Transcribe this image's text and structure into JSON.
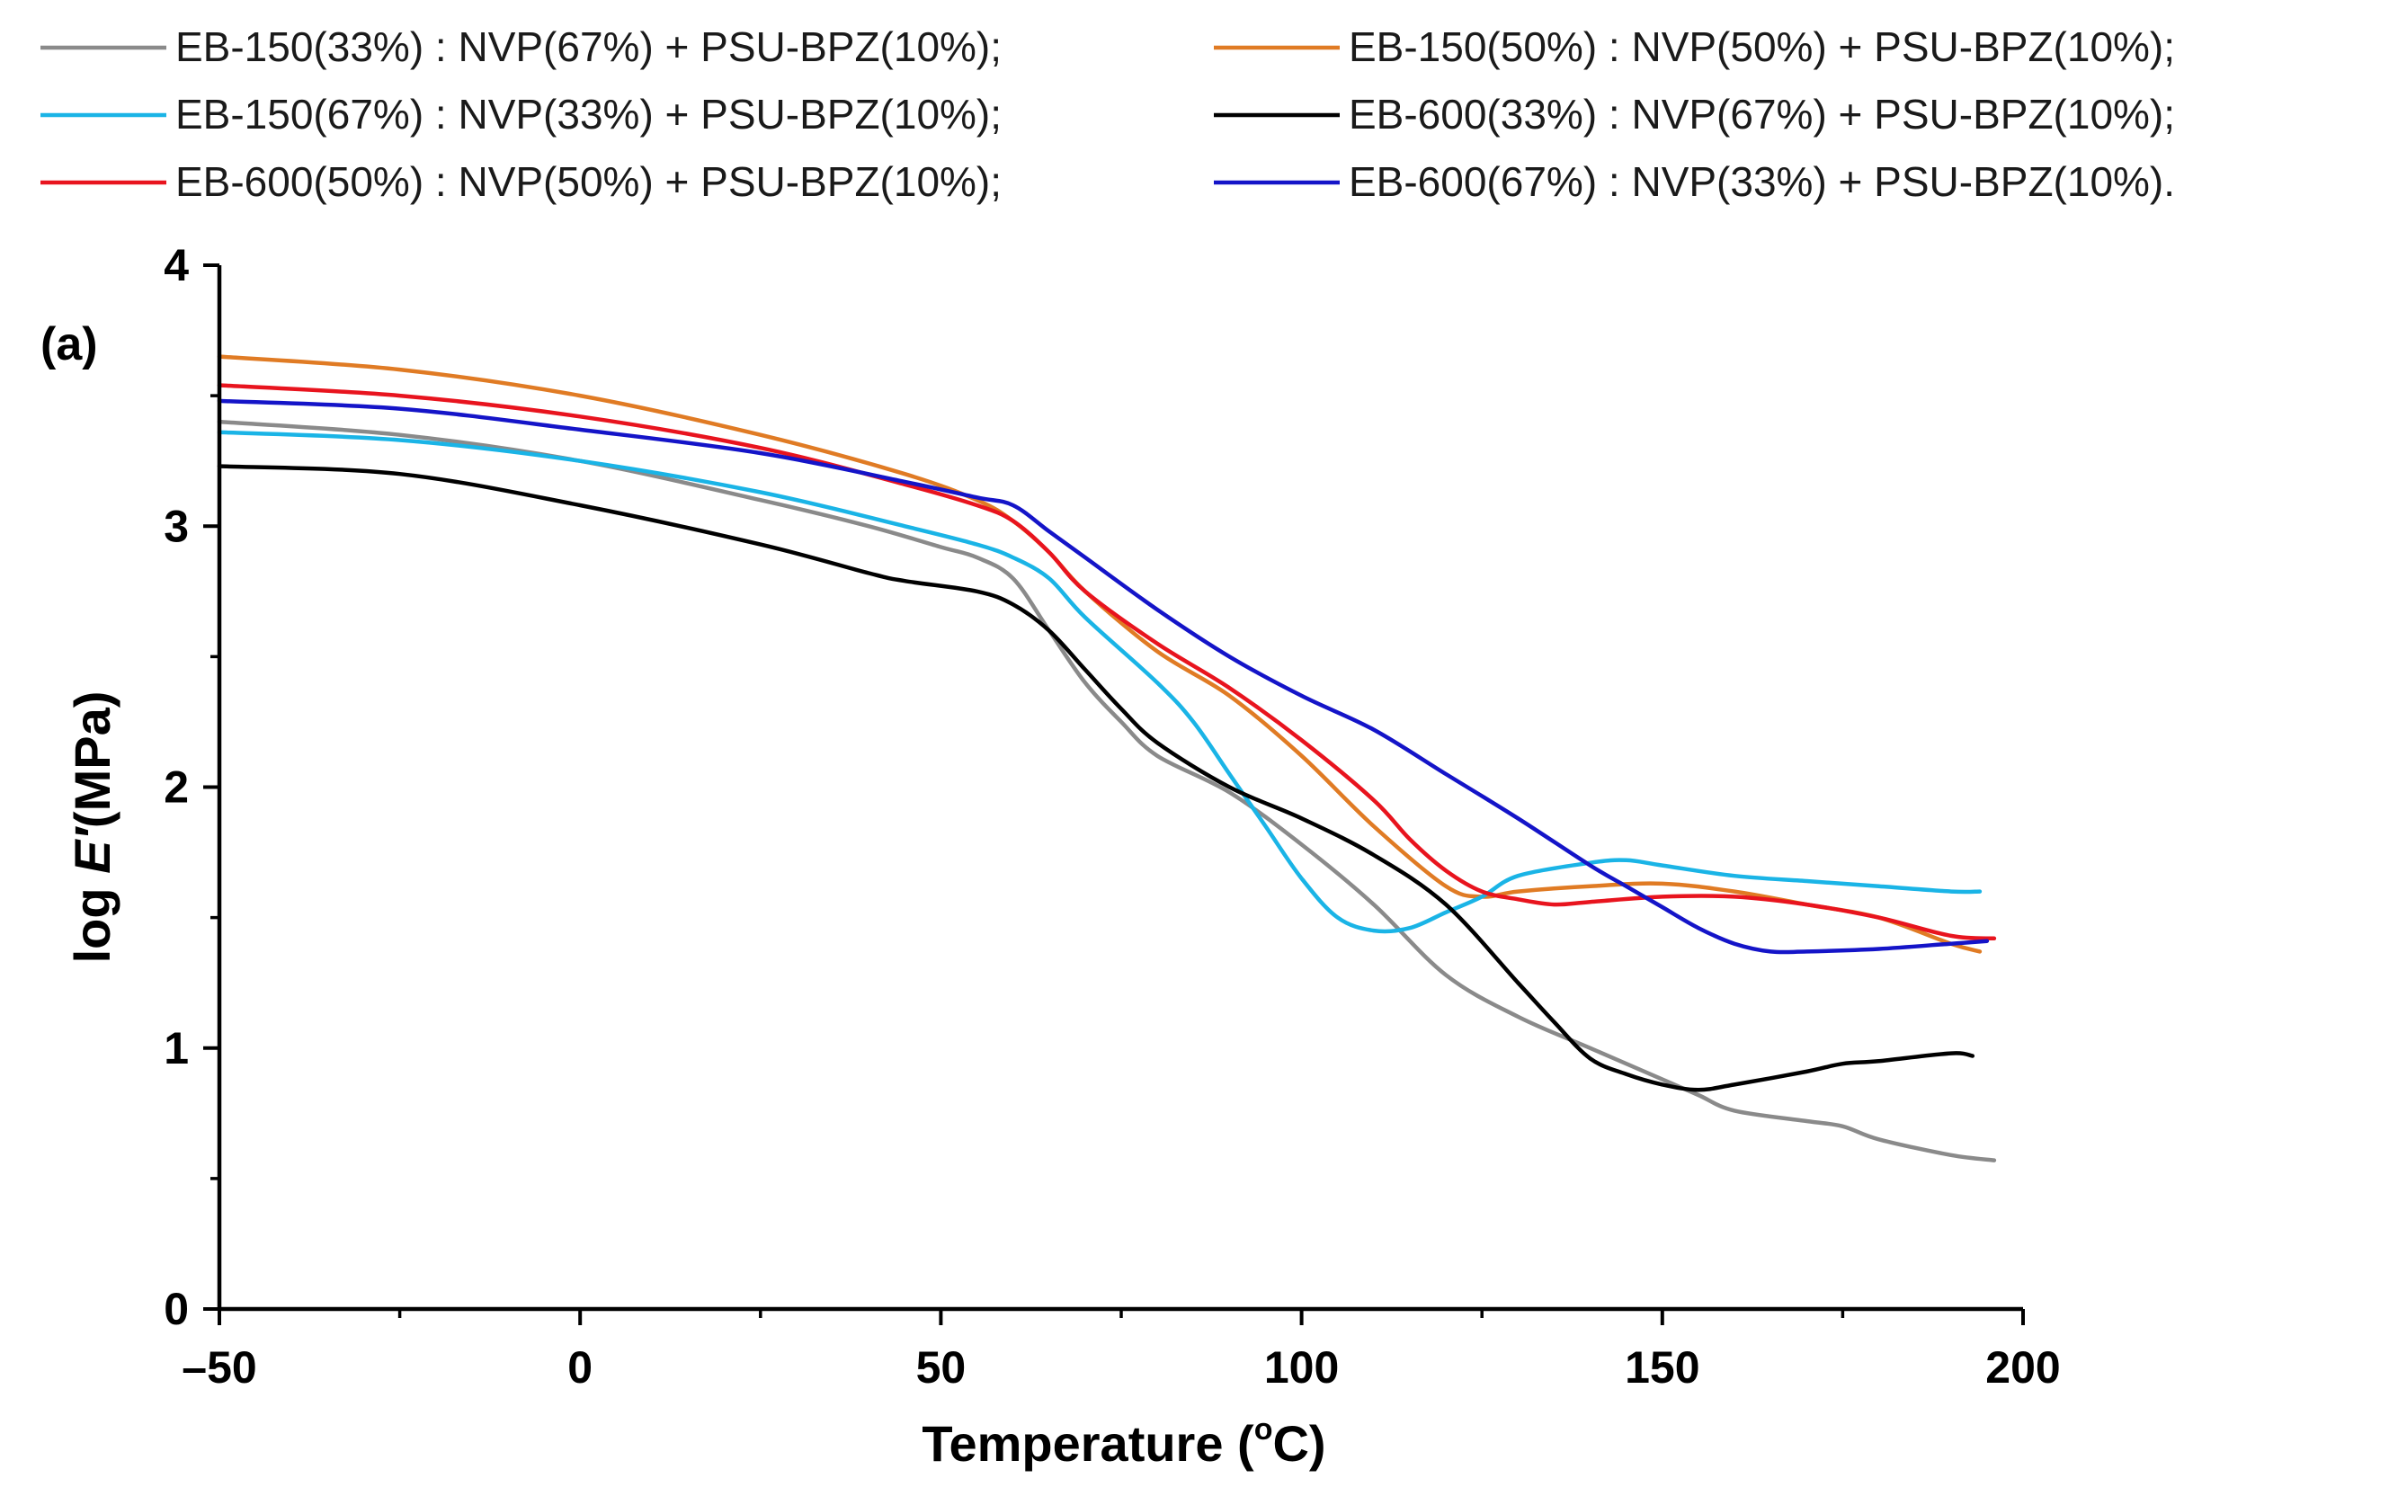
{
  "chart_data": {
    "type": "line",
    "panel_label": "(a)",
    "xlabel": "Temperature (°C)",
    "xlabel_parts": {
      "main": "Temperature (",
      "degree": "o",
      "unit": "C)"
    },
    "ylabel": "log E′(MPa)",
    "ylabel_parts": {
      "prefix": "log ",
      "italic": "E′",
      "suffix": "(MPa)"
    },
    "xlim": [
      -50,
      200
    ],
    "ylim": [
      0,
      4
    ],
    "x_ticks": [
      -50,
      0,
      50,
      100,
      150,
      200
    ],
    "x_tick_labels": [
      "–50",
      "0",
      "50",
      "100",
      "150",
      "200"
    ],
    "y_ticks": [
      0,
      1,
      2,
      3,
      4
    ],
    "y_tick_labels": [
      "0",
      "1",
      "2",
      "3",
      "4"
    ],
    "legend_position": "top",
    "series": [
      {
        "name": "EB-150(33%) : NVP(67%) + PSU-BPZ(10%);",
        "color": "#8a8a8a",
        "points": [
          [
            -50,
            3.4
          ],
          [
            -25,
            3.35
          ],
          [
            0,
            3.25
          ],
          [
            25,
            3.1
          ],
          [
            40,
            3.0
          ],
          [
            50,
            2.92
          ],
          [
            55,
            2.88
          ],
          [
            60,
            2.8
          ],
          [
            65,
            2.6
          ],
          [
            70,
            2.4
          ],
          [
            75,
            2.25
          ],
          [
            80,
            2.12
          ],
          [
            90,
            1.98
          ],
          [
            100,
            1.78
          ],
          [
            110,
            1.55
          ],
          [
            120,
            1.28
          ],
          [
            130,
            1.12
          ],
          [
            140,
            1.0
          ],
          [
            150,
            0.88
          ],
          [
            155,
            0.82
          ],
          [
            160,
            0.76
          ],
          [
            170,
            0.72
          ],
          [
            175,
            0.7
          ],
          [
            180,
            0.65
          ],
          [
            190,
            0.59
          ],
          [
            196,
            0.57
          ]
        ]
      },
      {
        "name": "EB-150(50%) : NVP(50%) + PSU-BPZ(10%);",
        "color": "#e07b24",
        "points": [
          [
            -50,
            3.65
          ],
          [
            -25,
            3.6
          ],
          [
            0,
            3.5
          ],
          [
            25,
            3.35
          ],
          [
            45,
            3.2
          ],
          [
            55,
            3.1
          ],
          [
            60,
            3.02
          ],
          [
            65,
            2.9
          ],
          [
            70,
            2.75
          ],
          [
            80,
            2.52
          ],
          [
            90,
            2.35
          ],
          [
            100,
            2.12
          ],
          [
            110,
            1.85
          ],
          [
            120,
            1.62
          ],
          [
            125,
            1.58
          ],
          [
            130,
            1.6
          ],
          [
            140,
            1.62
          ],
          [
            150,
            1.63
          ],
          [
            160,
            1.6
          ],
          [
            170,
            1.55
          ],
          [
            180,
            1.5
          ],
          [
            190,
            1.4
          ],
          [
            194,
            1.37
          ]
        ]
      },
      {
        "name": "EB-150(67%) : NVP(33%) + PSU-BPZ(10%);",
        "color": "#1ab4e6",
        "points": [
          [
            -50,
            3.36
          ],
          [
            -25,
            3.33
          ],
          [
            0,
            3.25
          ],
          [
            25,
            3.13
          ],
          [
            45,
            3.0
          ],
          [
            55,
            2.93
          ],
          [
            60,
            2.88
          ],
          [
            65,
            2.8
          ],
          [
            70,
            2.65
          ],
          [
            80,
            2.4
          ],
          [
            85,
            2.25
          ],
          [
            90,
            2.05
          ],
          [
            95,
            1.85
          ],
          [
            100,
            1.65
          ],
          [
            105,
            1.5
          ],
          [
            110,
            1.45
          ],
          [
            115,
            1.46
          ],
          [
            120,
            1.52
          ],
          [
            125,
            1.58
          ],
          [
            130,
            1.66
          ],
          [
            140,
            1.71
          ],
          [
            145,
            1.72
          ],
          [
            150,
            1.7
          ],
          [
            160,
            1.66
          ],
          [
            170,
            1.64
          ],
          [
            180,
            1.62
          ],
          [
            190,
            1.6
          ],
          [
            194,
            1.6
          ]
        ]
      },
      {
        "name": "EB-600(33%) : NVP(67%) + PSU-BPZ(10%);",
        "color": "#000000",
        "points": [
          [
            -50,
            3.23
          ],
          [
            -25,
            3.2
          ],
          [
            0,
            3.08
          ],
          [
            25,
            2.93
          ],
          [
            40,
            2.82
          ],
          [
            45,
            2.79
          ],
          [
            55,
            2.75
          ],
          [
            60,
            2.7
          ],
          [
            65,
            2.6
          ],
          [
            70,
            2.45
          ],
          [
            75,
            2.3
          ],
          [
            80,
            2.17
          ],
          [
            90,
            2.0
          ],
          [
            100,
            1.88
          ],
          [
            110,
            1.74
          ],
          [
            120,
            1.55
          ],
          [
            130,
            1.25
          ],
          [
            135,
            1.1
          ],
          [
            140,
            0.96
          ],
          [
            145,
            0.9
          ],
          [
            150,
            0.86
          ],
          [
            155,
            0.84
          ],
          [
            160,
            0.86
          ],
          [
            170,
            0.91
          ],
          [
            175,
            0.94
          ],
          [
            180,
            0.95
          ],
          [
            190,
            0.98
          ],
          [
            193,
            0.97
          ]
        ]
      },
      {
        "name": "EB-600(50%) : NVP(50%) + PSU-BPZ(10%);",
        "color": "#e8141e",
        "points": [
          [
            -50,
            3.54
          ],
          [
            -25,
            3.5
          ],
          [
            0,
            3.42
          ],
          [
            25,
            3.3
          ],
          [
            45,
            3.16
          ],
          [
            55,
            3.08
          ],
          [
            60,
            3.02
          ],
          [
            65,
            2.9
          ],
          [
            70,
            2.75
          ],
          [
            80,
            2.55
          ],
          [
            90,
            2.38
          ],
          [
            100,
            2.18
          ],
          [
            110,
            1.95
          ],
          [
            115,
            1.8
          ],
          [
            120,
            1.68
          ],
          [
            125,
            1.6
          ],
          [
            130,
            1.57
          ],
          [
            135,
            1.55
          ],
          [
            140,
            1.56
          ],
          [
            150,
            1.58
          ],
          [
            160,
            1.58
          ],
          [
            170,
            1.55
          ],
          [
            180,
            1.5
          ],
          [
            190,
            1.43
          ],
          [
            196,
            1.42
          ]
        ]
      },
      {
        "name": "EB-600(67%) : NVP(33%) + PSU-BPZ(10%).",
        "color": "#1414c8",
        "points": [
          [
            -50,
            3.48
          ],
          [
            -25,
            3.45
          ],
          [
            0,
            3.37
          ],
          [
            25,
            3.28
          ],
          [
            45,
            3.17
          ],
          [
            55,
            3.11
          ],
          [
            60,
            3.08
          ],
          [
            65,
            2.98
          ],
          [
            70,
            2.88
          ],
          [
            80,
            2.68
          ],
          [
            90,
            2.5
          ],
          [
            100,
            2.35
          ],
          [
            110,
            2.22
          ],
          [
            120,
            2.05
          ],
          [
            130,
            1.88
          ],
          [
            140,
            1.7
          ],
          [
            145,
            1.62
          ],
          [
            150,
            1.54
          ],
          [
            155,
            1.46
          ],
          [
            160,
            1.4
          ],
          [
            165,
            1.37
          ],
          [
            170,
            1.37
          ],
          [
            180,
            1.38
          ],
          [
            190,
            1.4
          ],
          [
            195,
            1.41
          ]
        ]
      }
    ]
  }
}
